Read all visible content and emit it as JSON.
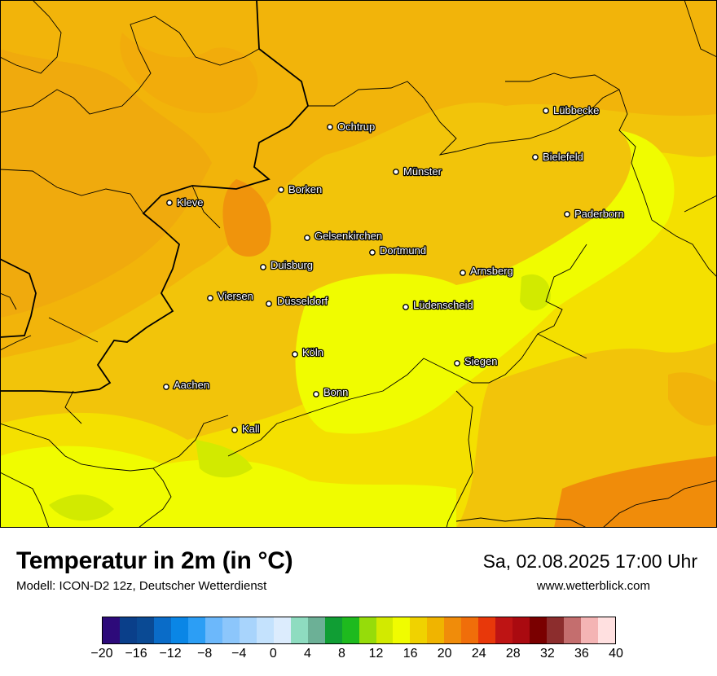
{
  "title": "Temperatur in 2m (in °C)",
  "model": "Modell: ICON-D2 12z, Deutscher Wetterdienst",
  "datetime": "Sa, 02.08.2025 17:00 Uhr",
  "website": "www.wetterblick.com",
  "cities": [
    {
      "name": "Lübbecke",
      "id": "luebbecke"
    },
    {
      "name": "Ochtrup",
      "id": "ochtrup"
    },
    {
      "name": "Bielefeld",
      "id": "bielefeld"
    },
    {
      "name": "Münster",
      "id": "muenster"
    },
    {
      "name": "Borken",
      "id": "borken"
    },
    {
      "name": "Kleve",
      "id": "kleve"
    },
    {
      "name": "Paderborn",
      "id": "paderborn"
    },
    {
      "name": "Gelsenkirchen",
      "id": "gelsenkirchen"
    },
    {
      "name": "Dortmund",
      "id": "dortmund"
    },
    {
      "name": "Duisburg",
      "id": "duisburg"
    },
    {
      "name": "Arnsberg",
      "id": "arnsberg"
    },
    {
      "name": "Viersen",
      "id": "viersen"
    },
    {
      "name": "Düsseldorf",
      "id": "duesseldorf"
    },
    {
      "name": "Lüdenscheid",
      "id": "luedenscheid"
    },
    {
      "name": "Köln",
      "id": "koeln"
    },
    {
      "name": "Siegen",
      "id": "siegen"
    },
    {
      "name": "Aachen",
      "id": "aachen"
    },
    {
      "name": "Bonn",
      "id": "bonn"
    },
    {
      "name": "Kall",
      "id": "kall"
    }
  ],
  "colorscale": {
    "colors": [
      "#2d0a7a",
      "#0a3f8a",
      "#0a4a94",
      "#0a6cc8",
      "#0a86e6",
      "#2c9ef5",
      "#6cb8fb",
      "#8cc6fb",
      "#a8d4fc",
      "#c4e2fd",
      "#dcecfd",
      "#8edcc0",
      "#6cb096",
      "#109e34",
      "#1eba1e",
      "#96dc0a",
      "#d2ea00",
      "#f0fc00",
      "#f0d200",
      "#f0b400",
      "#f08c0a",
      "#f06e0a",
      "#e8380a",
      "#be1414",
      "#aa0a10",
      "#7a0000",
      "#8c2d2d",
      "#c46e6e",
      "#f4b4b4",
      "#ffe0e0"
    ],
    "ticks": [
      "−20",
      "−16",
      "−12",
      "−8",
      "−4",
      "0",
      "4",
      "8",
      "12",
      "16",
      "20",
      "24",
      "28",
      "32",
      "36",
      "40"
    ],
    "min": -20,
    "max": 40
  }
}
